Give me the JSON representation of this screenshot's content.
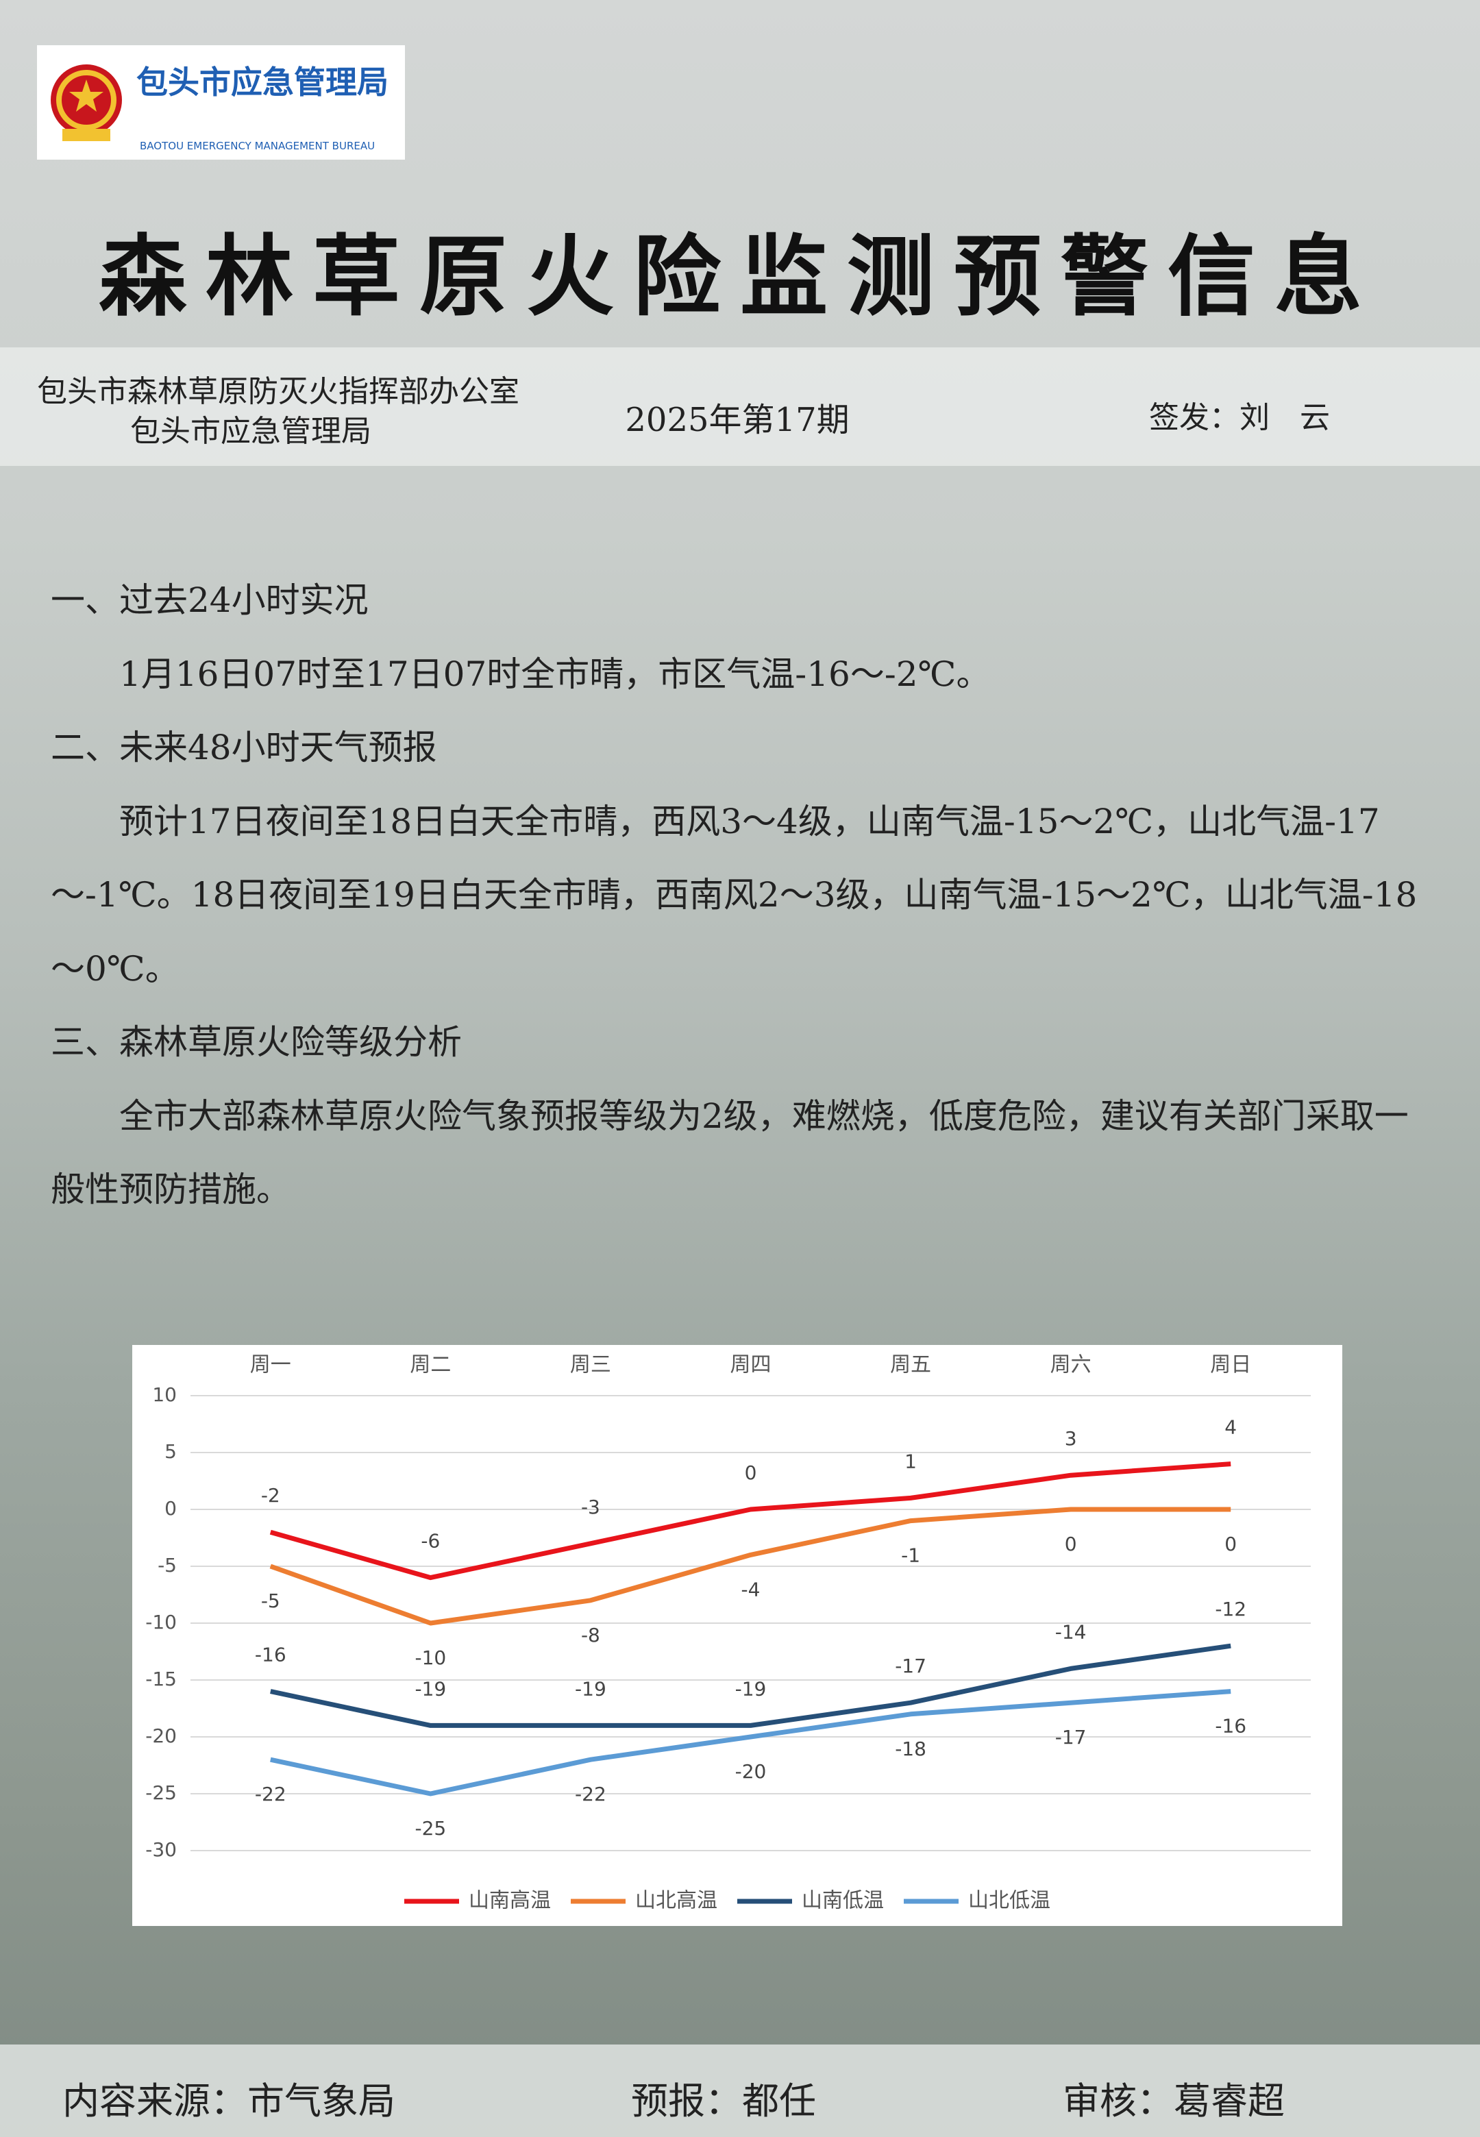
{
  "header": {
    "org_name": "包头市应急管理局",
    "org_name_en": "BAOTOU EMERGENCY MANAGEMENT BUREAU"
  },
  "title": "森林草原火险监测预警信息",
  "issuers": [
    "包头市森林草原防灭火指挥部办公室",
    "包头市应急管理局"
  ],
  "issue": "2025年第17期",
  "signer": "签发：刘　云",
  "sections": [
    {
      "heading": "一、过去24小时实况",
      "body": "1月16日07时至17日07时全市晴，市区气温-16～-2℃。"
    },
    {
      "heading": "二、未来48小时天气预报",
      "body": "预计17日夜间至18日白天全市晴，西风3～4级，山南气温-15～2℃，山北气温-17～-1℃。18日夜间至19日白天全市晴，西南风2～3级，山南气温-15～2℃，山北气温-18～0℃。"
    },
    {
      "heading": "三、森林草原火险等级分析",
      "body": "全市大部森林草原火险气象预报等级为2级，难燃烧，低度危险，建议有关部门采取一般性预防措施。"
    }
  ],
  "chart_data": {
    "type": "line",
    "categories": [
      "周一",
      "周二",
      "周三",
      "周四",
      "周五",
      "周六",
      "周日"
    ],
    "series": [
      {
        "name": "山南高温",
        "color": "#e8141b",
        "values": [
          -2,
          -6,
          -3,
          0,
          1,
          3,
          4
        ]
      },
      {
        "name": "山北高温",
        "color": "#ed7d31",
        "values": [
          -5,
          -10,
          -8,
          -4,
          -1,
          0,
          0
        ]
      },
      {
        "name": "山南低温",
        "color": "#264f78",
        "values": [
          -16,
          -19,
          -19,
          -19,
          -17,
          -14,
          -12
        ]
      },
      {
        "name": "山北低温",
        "color": "#5b9bd5",
        "values": [
          -22,
          -25,
          -22,
          -20,
          -18,
          -17,
          -16
        ]
      }
    ],
    "ylim": [
      -30,
      10
    ],
    "yticks": [
      -30,
      -25,
      -20,
      -15,
      -10,
      -5,
      0,
      5,
      10
    ],
    "grid": true,
    "legend": "bottom"
  },
  "footer": {
    "source": "内容来源：市气象局",
    "forecaster": "预报：都任",
    "reviewer": "审核：葛睿超"
  }
}
